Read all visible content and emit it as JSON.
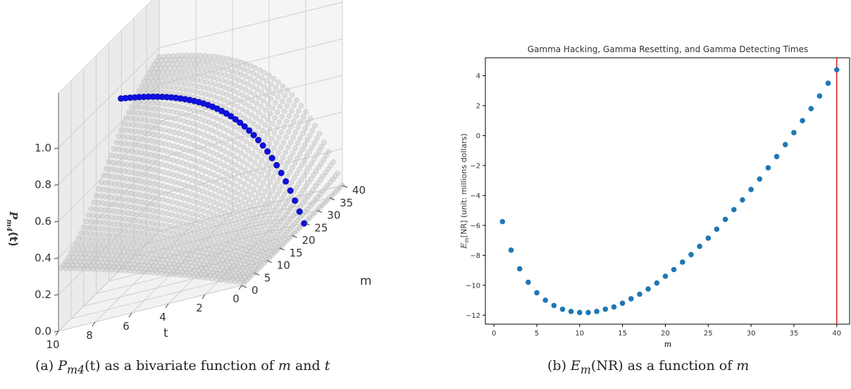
{
  "chart_data": [
    {
      "type": "scatter",
      "projection": "3d",
      "grid": true,
      "xlabel": "t",
      "ylabel": "m",
      "zlabel": "P_m4(t)",
      "x_ticks": [
        "10",
        "8",
        "6",
        "4",
        "2",
        "0"
      ],
      "y_ticks": [
        "0",
        "5",
        "10",
        "15",
        "20",
        "25",
        "30",
        "35",
        "40"
      ],
      "z_ticks": [
        "0.0",
        "0.2",
        "0.4",
        "0.6",
        "0.8",
        "1.0"
      ],
      "xlim": [
        0,
        10
      ],
      "ylim": [
        0,
        40
      ],
      "zlim": [
        0,
        1
      ],
      "surface_color": "#c8c8c8",
      "highlight_color": "#1010e0",
      "highlight_m": 40,
      "highlight_t": [
        0.0,
        0.25,
        0.5,
        0.75,
        1.0,
        1.25,
        1.5,
        1.75,
        2.0,
        2.25,
        2.5,
        2.75,
        3.0,
        3.25,
        3.5,
        3.75,
        4.0,
        4.25,
        4.5,
        4.75,
        5.0,
        5.25,
        5.5,
        5.75,
        6.0,
        6.25,
        6.5,
        6.75,
        7.0,
        7.25,
        7.5,
        7.75,
        8.0,
        8.25,
        8.5,
        8.75,
        9.0,
        9.25,
        9.5,
        9.75,
        10.0
      ]
    },
    {
      "type": "scatter",
      "title": "Gamma Hacking, Gamma Resetting, and Gamma Detecting Times",
      "xlabel": "m",
      "ylabel": "E_m[NR] (unit: millions dollars)",
      "xlim": [
        -1,
        41.5
      ],
      "ylim": [
        -12.6,
        5.2
      ],
      "x_ticks": [
        0,
        5,
        10,
        15,
        20,
        25,
        30,
        35,
        40
      ],
      "y_ticks": [
        -12,
        -10,
        -8,
        -6,
        -4,
        -2,
        0,
        2,
        4
      ],
      "marker_color": "#1f77b4",
      "vline": {
        "x": 40,
        "color": "#d62728"
      },
      "x": [
        1,
        2,
        3,
        4,
        5,
        6,
        7,
        8,
        9,
        10,
        11,
        12,
        13,
        14,
        15,
        16,
        17,
        18,
        19,
        20,
        21,
        22,
        23,
        24,
        25,
        26,
        27,
        28,
        29,
        30,
        31,
        32,
        33,
        34,
        35,
        36,
        37,
        38,
        39,
        40
      ],
      "y": [
        -5.75,
        -7.65,
        -8.9,
        -9.8,
        -10.5,
        -11.0,
        -11.35,
        -11.6,
        -11.75,
        -11.82,
        -11.82,
        -11.75,
        -11.6,
        -11.45,
        -11.2,
        -10.9,
        -10.6,
        -10.25,
        -9.85,
        -9.4,
        -8.95,
        -8.45,
        -7.95,
        -7.4,
        -6.85,
        -6.25,
        -5.6,
        -4.95,
        -4.3,
        -3.6,
        -2.9,
        -2.15,
        -1.4,
        -0.6,
        0.2,
        1.0,
        1.8,
        2.65,
        3.5,
        4.4
      ]
    }
  ],
  "captions": {
    "a_prefix": "(a) ",
    "a_var": "P",
    "a_sub": "m4",
    "a_mid": "(t) as a bivariate function of ",
    "a_m": "m",
    "a_and": " and ",
    "a_t": "t",
    "b_prefix": "(b) ",
    "b_var": "E",
    "b_sub": "m",
    "b_mid": "(NR) as a function of ",
    "b_m": "m"
  },
  "labels": {
    "zlabel_main": "P",
    "zlabel_sub": "m4",
    "zlabel_tail": "(t)",
    "ylabel_main": "E",
    "ylabel_sub": "m",
    "ylabel_tail": "[NR] (unit: millions dollars)"
  }
}
